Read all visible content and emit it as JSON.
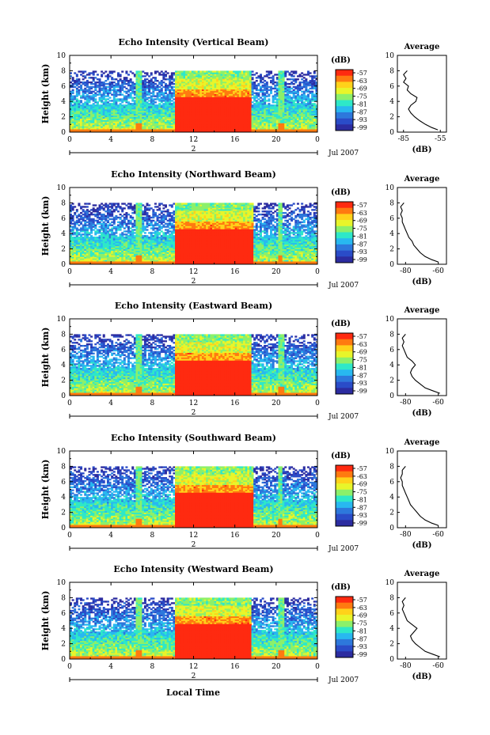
{
  "figure": {
    "xlabel_bottom": "Local Time",
    "colorbar_unit": "(dB)",
    "colorbar_ticks": [
      "-57",
      "-63",
      "-69",
      "-75",
      "-81",
      "-87",
      "-93",
      "-99"
    ],
    "colorbar_colors": [
      "#ff2a10",
      "#ff7a10",
      "#ffd21a",
      "#e8f52a",
      "#8cf06a",
      "#2ee8c8",
      "#28b8f0",
      "#2d78dc",
      "#2a4cc8",
      "#2c2ca0"
    ],
    "date_label": "Jul 2007",
    "day_label": "2",
    "avg_title": "Average",
    "avg_xlabel": "(dB)"
  },
  "chart_data": [
    {
      "type": "heatmap",
      "title": "Echo Intensity (Vertical Beam)",
      "ylabel": "Height (km)",
      "xlim": [
        0,
        24
      ],
      "ylim": [
        0,
        10
      ],
      "x_ticks": [
        "0",
        "4",
        "8",
        "12",
        "16",
        "20",
        "0"
      ],
      "y_ticks": [
        "0",
        "2",
        "4",
        "6",
        "8",
        "10"
      ],
      "precip_periods_hours": [
        [
          6.5,
          7.0
        ],
        [
          10.2,
          17.6
        ],
        [
          20.3,
          20.7
        ]
      ],
      "average_profile": {
        "title": "Average",
        "xlabel": "(dB)",
        "x_ticks": [
          "-85",
          "-55"
        ],
        "xlim": [
          -90,
          -50
        ],
        "y_ticks": [
          "0",
          "2",
          "4",
          "6",
          "8",
          "10"
        ],
        "ylim": [
          0,
          10
        ],
        "heights_km": [
          0.3,
          0.6,
          1.0,
          1.5,
          2.0,
          2.5,
          3.0,
          3.5,
          4.0,
          4.5,
          5.0,
          5.5,
          6.0,
          6.5,
          7.0,
          7.5,
          8.0
        ],
        "values_db": [
          -57,
          -62,
          -67,
          -72,
          -76,
          -79,
          -81,
          -79,
          -75,
          -74,
          -79,
          -82,
          -81,
          -85,
          -83,
          -85,
          -82
        ]
      }
    },
    {
      "type": "heatmap",
      "title": "Echo Intensity (Northward Beam)",
      "ylabel": "Height (km)",
      "xlim": [
        0,
        24
      ],
      "ylim": [
        0,
        10
      ],
      "x_ticks": [
        "0",
        "4",
        "8",
        "12",
        "16",
        "20",
        "0"
      ],
      "y_ticks": [
        "0",
        "2",
        "4",
        "6",
        "8",
        "10"
      ],
      "precip_periods_hours": [
        [
          6.5,
          7.0
        ],
        [
          10.2,
          17.8
        ],
        [
          20.2,
          20.6
        ]
      ],
      "average_profile": {
        "title": "Average",
        "xlabel": "(dB)",
        "x_ticks": [
          "-80",
          "-60"
        ],
        "xlim": [
          -85,
          -55
        ],
        "y_ticks": [
          "0",
          "2",
          "4",
          "6",
          "8",
          "10"
        ],
        "ylim": [
          0,
          10
        ],
        "heights_km": [
          0.3,
          0.6,
          1.0,
          1.5,
          2.0,
          2.5,
          3.0,
          3.5,
          4.0,
          4.5,
          5.0,
          5.5,
          6.0,
          6.5,
          7.0,
          7.5,
          8.0
        ],
        "values_db": [
          -60,
          -64,
          -68,
          -71,
          -73,
          -75,
          -76,
          -78,
          -79,
          -80,
          -81,
          -82,
          -82,
          -83,
          -82,
          -83,
          -81
        ]
      }
    },
    {
      "type": "heatmap",
      "title": "Echo Intensity (Eastward Beam)",
      "ylabel": "Height (km)",
      "xlim": [
        0,
        24
      ],
      "ylim": [
        0,
        10
      ],
      "x_ticks": [
        "0",
        "4",
        "8",
        "12",
        "16",
        "20",
        "0"
      ],
      "y_ticks": [
        "0",
        "2",
        "4",
        "6",
        "8",
        "10"
      ],
      "precip_periods_hours": [
        [
          6.5,
          7.0
        ],
        [
          10.2,
          17.6
        ],
        [
          20.3,
          20.7
        ]
      ],
      "average_profile": {
        "title": "Average",
        "xlabel": "(dB)",
        "x_ticks": [
          "-80",
          "-60"
        ],
        "xlim": [
          -85,
          -55
        ],
        "y_ticks": [
          "0",
          "2",
          "4",
          "6",
          "8",
          "10"
        ],
        "ylim": [
          0,
          10
        ],
        "heights_km": [
          0.3,
          0.6,
          1.0,
          1.5,
          2.0,
          2.5,
          3.0,
          3.5,
          4.0,
          4.5,
          5.0,
          5.5,
          6.0,
          6.5,
          7.0,
          7.5,
          8.0
        ],
        "values_db": [
          -59,
          -63,
          -68,
          -71,
          -74,
          -76,
          -77,
          -76,
          -74,
          -76,
          -79,
          -80,
          -81,
          -82,
          -81,
          -82,
          -80
        ]
      }
    },
    {
      "type": "heatmap",
      "title": "Echo Intensity (Southward Beam)",
      "ylabel": "Height (km)",
      "xlim": [
        0,
        24
      ],
      "ylim": [
        0,
        10
      ],
      "x_ticks": [
        "0",
        "4",
        "8",
        "12",
        "16",
        "20",
        "0"
      ],
      "y_ticks": [
        "0",
        "2",
        "4",
        "6",
        "8",
        "10"
      ],
      "precip_periods_hours": [
        [
          6.5,
          7.0
        ],
        [
          10.2,
          17.8
        ],
        [
          20.2,
          20.6
        ]
      ],
      "average_profile": {
        "title": "Average",
        "xlabel": "(dB)",
        "x_ticks": [
          "-80",
          "-60"
        ],
        "xlim": [
          -85,
          -55
        ],
        "y_ticks": [
          "0",
          "2",
          "4",
          "6",
          "8",
          "10"
        ],
        "ylim": [
          0,
          10
        ],
        "heights_km": [
          0.3,
          0.6,
          1.0,
          1.5,
          2.0,
          2.5,
          3.0,
          3.5,
          4.0,
          4.5,
          5.0,
          5.5,
          6.0,
          6.5,
          7.0,
          7.5,
          8.0
        ],
        "values_db": [
          -60,
          -64,
          -68,
          -71,
          -73,
          -75,
          -77,
          -78,
          -79,
          -80,
          -81,
          -82,
          -82,
          -83,
          -82,
          -82,
          -80
        ]
      }
    },
    {
      "type": "heatmap",
      "title": "Echo Intensity (Westward Beam)",
      "ylabel": "Height (km)",
      "xlim": [
        0,
        24
      ],
      "ylim": [
        0,
        10
      ],
      "x_ticks": [
        "0",
        "4",
        "8",
        "12",
        "16",
        "20",
        "0"
      ],
      "y_ticks": [
        "0",
        "2",
        "4",
        "6",
        "8",
        "10"
      ],
      "precip_periods_hours": [
        [
          6.5,
          7.0
        ],
        [
          10.2,
          17.6
        ],
        [
          20.3,
          20.7
        ]
      ],
      "average_profile": {
        "title": "Average",
        "xlabel": "(dB)",
        "x_ticks": [
          "-80",
          "-60"
        ],
        "xlim": [
          -85,
          -55
        ],
        "y_ticks": [
          "0",
          "2",
          "4",
          "6",
          "8",
          "10"
        ],
        "ylim": [
          0,
          10
        ],
        "heights_km": [
          0.3,
          0.6,
          1.0,
          1.5,
          2.0,
          2.5,
          3.0,
          3.5,
          4.0,
          4.5,
          5.0,
          5.5,
          6.0,
          6.5,
          7.0,
          7.5,
          8.0
        ],
        "values_db": [
          -59,
          -63,
          -68,
          -71,
          -74,
          -76,
          -77,
          -75,
          -73,
          -76,
          -79,
          -80,
          -81,
          -82,
          -81,
          -82,
          -80
        ]
      }
    }
  ]
}
